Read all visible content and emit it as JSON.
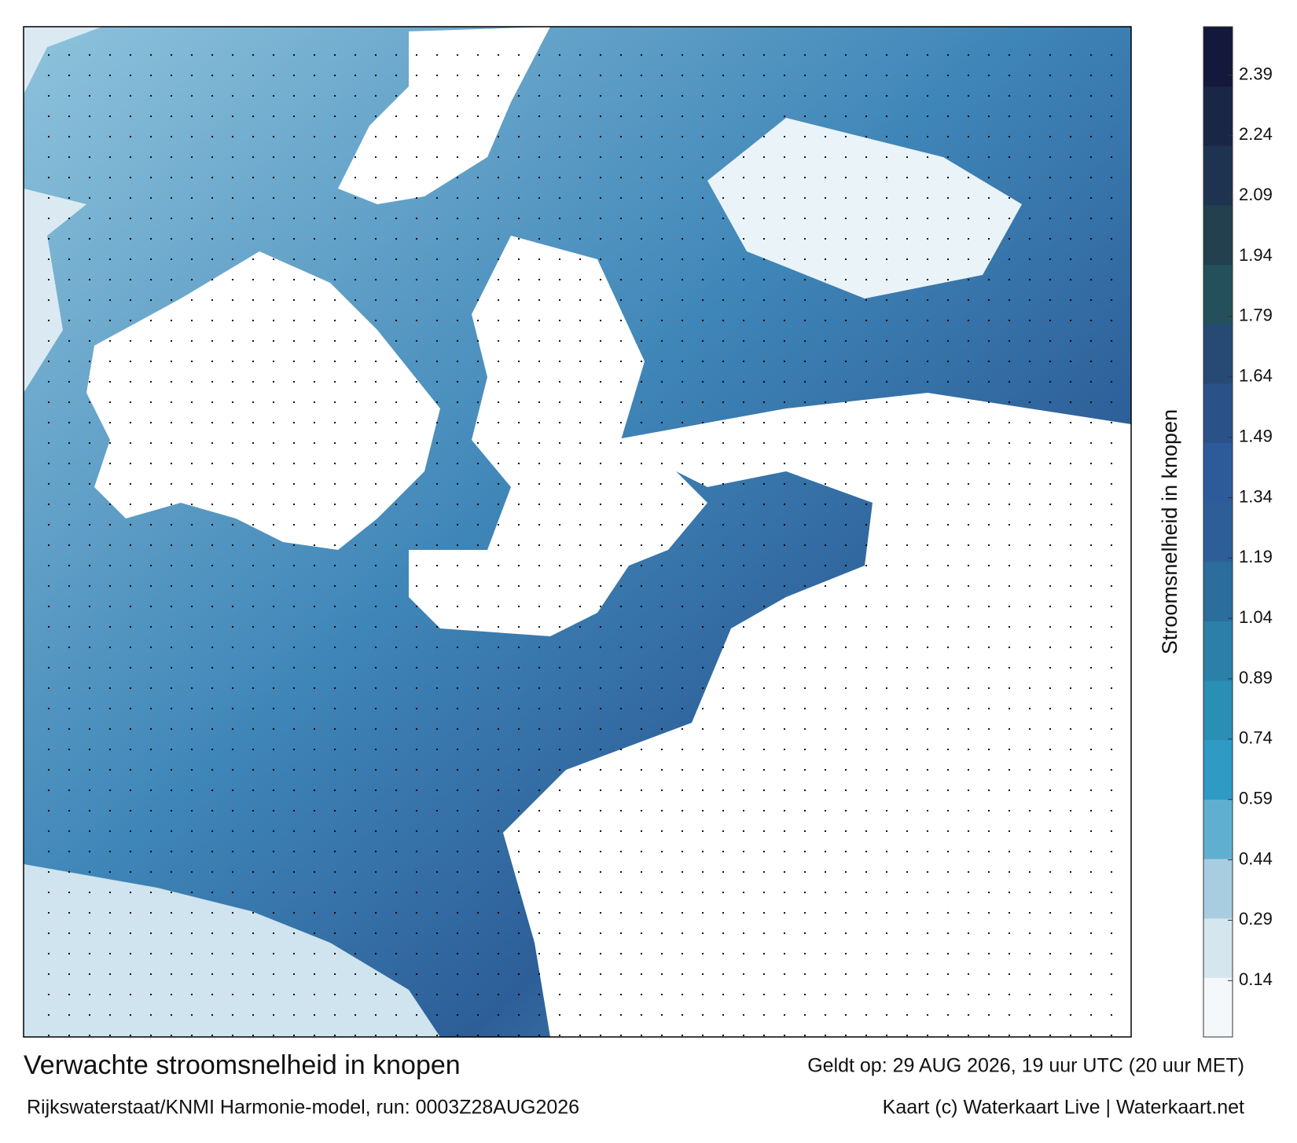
{
  "map": {
    "title": "Verwachte stroomsnelheid in knopen",
    "source": "Rijkswaterstaat/KNMI Harmonie-model, run: 0003Z28AUG2026",
    "valid": "Geldt op: 29 AUG 2026, 19 uur UTC (20 uur MET)",
    "credit": "Kaart (c) Waterkaart Live | Waterkaart.net"
  },
  "colorbar": {
    "label": "Stroomsnelheid in knopen",
    "lim": [
      0,
      2.51
    ],
    "ticks": [
      0.14,
      0.29,
      0.44,
      0.59,
      0.74,
      0.89,
      1.04,
      1.19,
      1.34,
      1.49,
      1.64,
      1.79,
      1.94,
      2.09,
      2.24,
      2.39
    ],
    "colors": [
      "#f4f8fb",
      "#d6e6ef",
      "#a9cde0",
      "#5fb0d0",
      "#2f9bc4",
      "#2a8fb5",
      "#2a80a8",
      "#2b6d9c",
      "#2d5e98",
      "#2d5a9a",
      "#2b5189",
      "#264a74",
      "#23505a",
      "#22404e",
      "#1e3350",
      "#1a2646",
      "#14183a"
    ]
  }
}
